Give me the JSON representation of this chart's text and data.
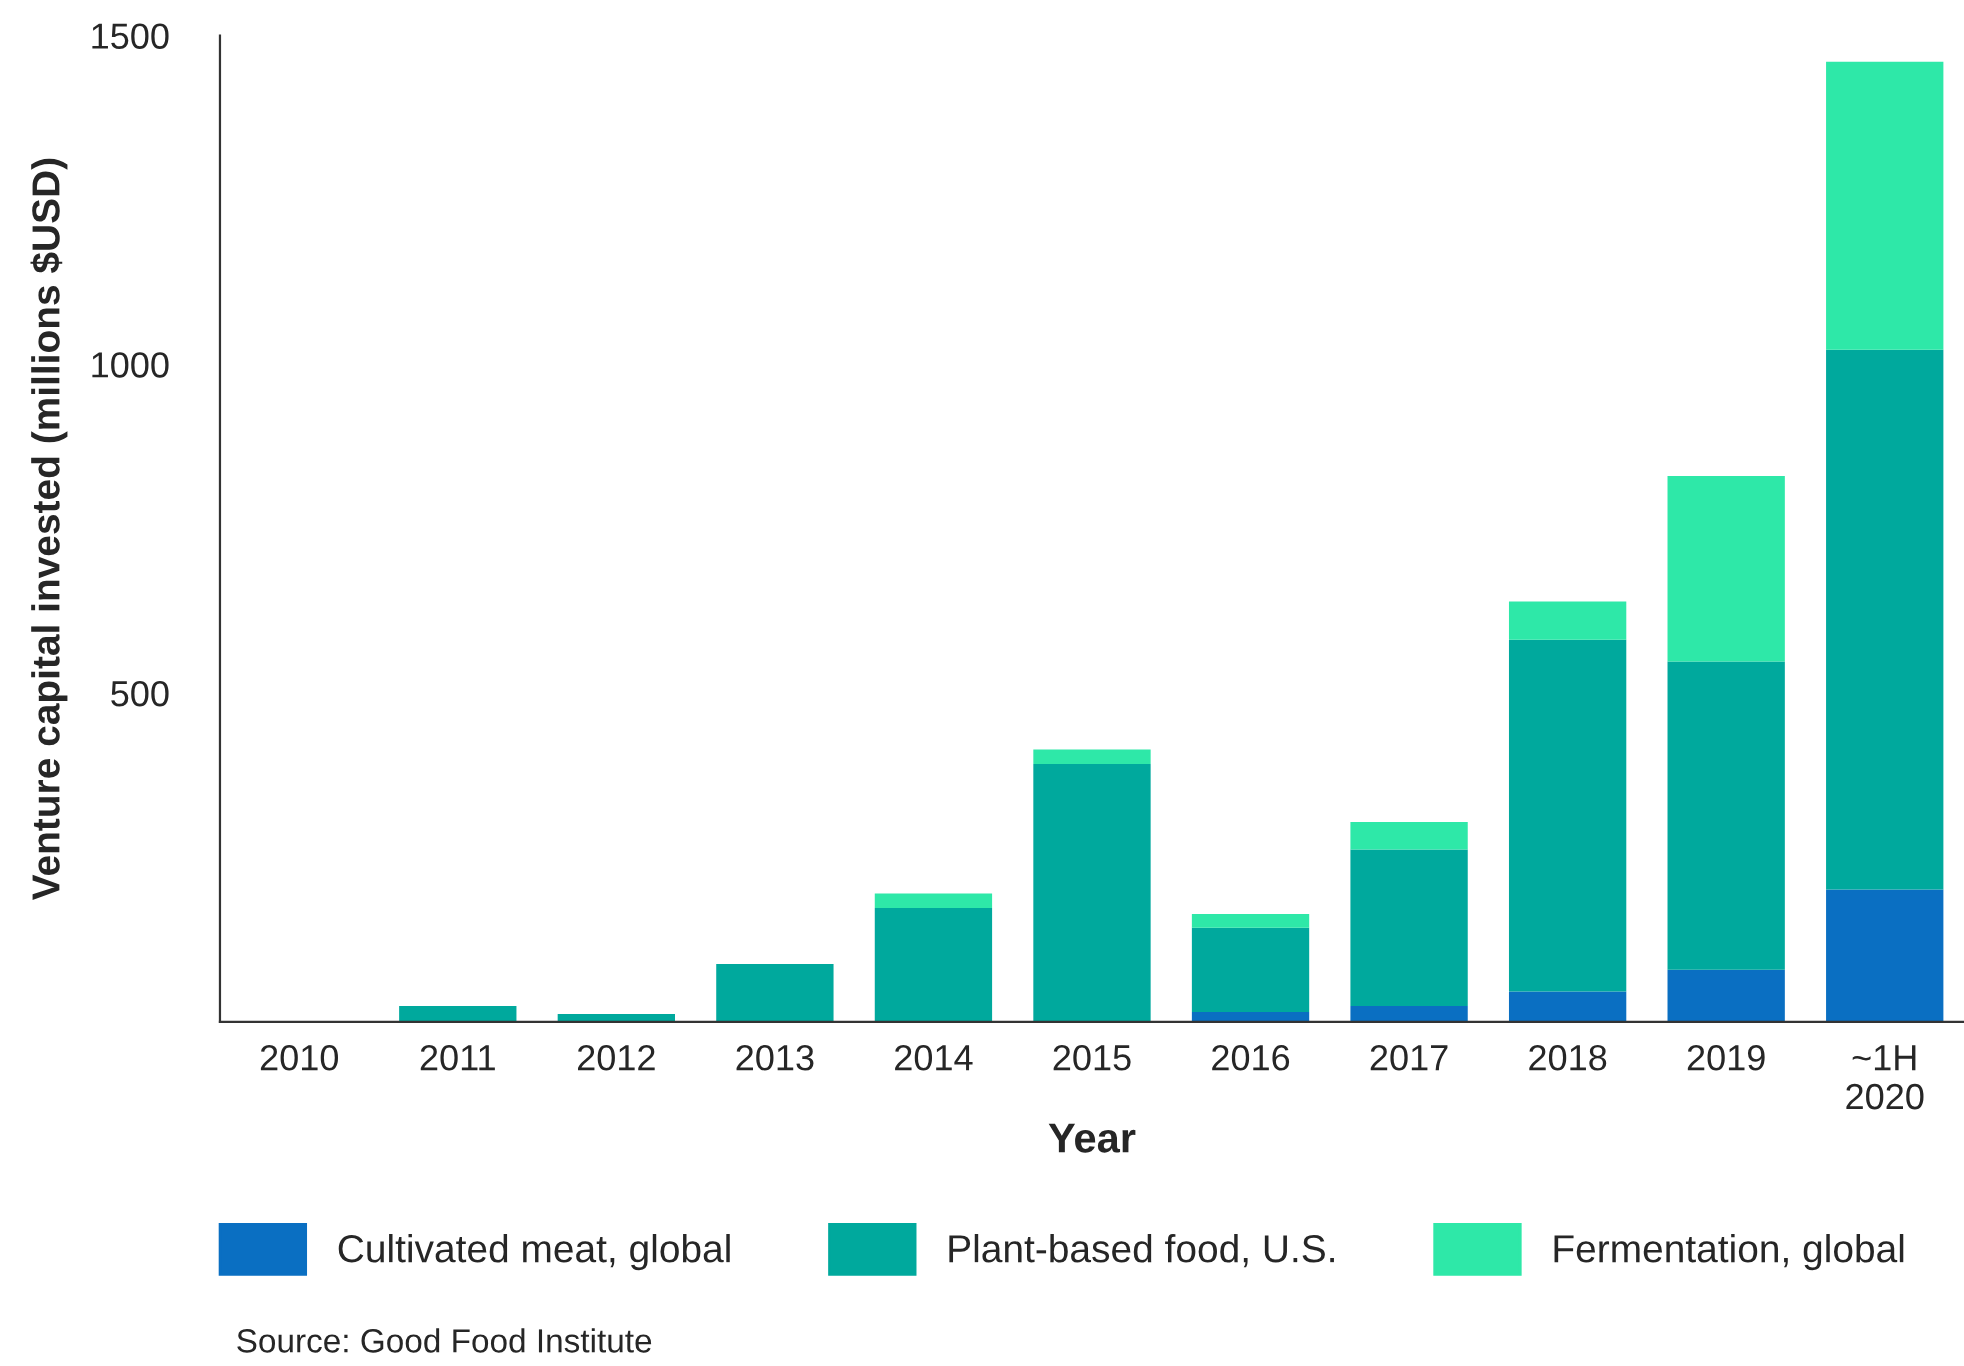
{
  "chart_data": {
    "type": "bar",
    "stacked": true,
    "xlabel": "Year",
    "ylabel": "Venture capital invested (millions $USD)",
    "categories": [
      "2010",
      "2011",
      "2012",
      "2013",
      "2014",
      "2015",
      "2016",
      "2017",
      "2018",
      "2019",
      "~1H\n2020"
    ],
    "series": [
      {
        "name": "Cultivated meat, global",
        "color": "#0a6fc2",
        "values": [
          0,
          0,
          0,
          0,
          0,
          0,
          15,
          24,
          46,
          79,
          201
        ]
      },
      {
        "name": "Plant-based food, U.S.",
        "color": "#00a99d",
        "values": [
          0,
          24,
          12,
          88,
          173,
          392,
          128,
          238,
          535,
          469,
          821
        ]
      },
      {
        "name": "Fermentation, global",
        "color": "#2ee8a8",
        "values": [
          0,
          0,
          0,
          0,
          22,
          22,
          21,
          42,
          58,
          282,
          438
        ]
      }
    ],
    "ylim": [
      0,
      1500
    ],
    "yticks": [
      500,
      1000,
      1500
    ],
    "grid": false,
    "legend": "bottom",
    "annotations": [
      "Source: Good Food Institute"
    ]
  }
}
